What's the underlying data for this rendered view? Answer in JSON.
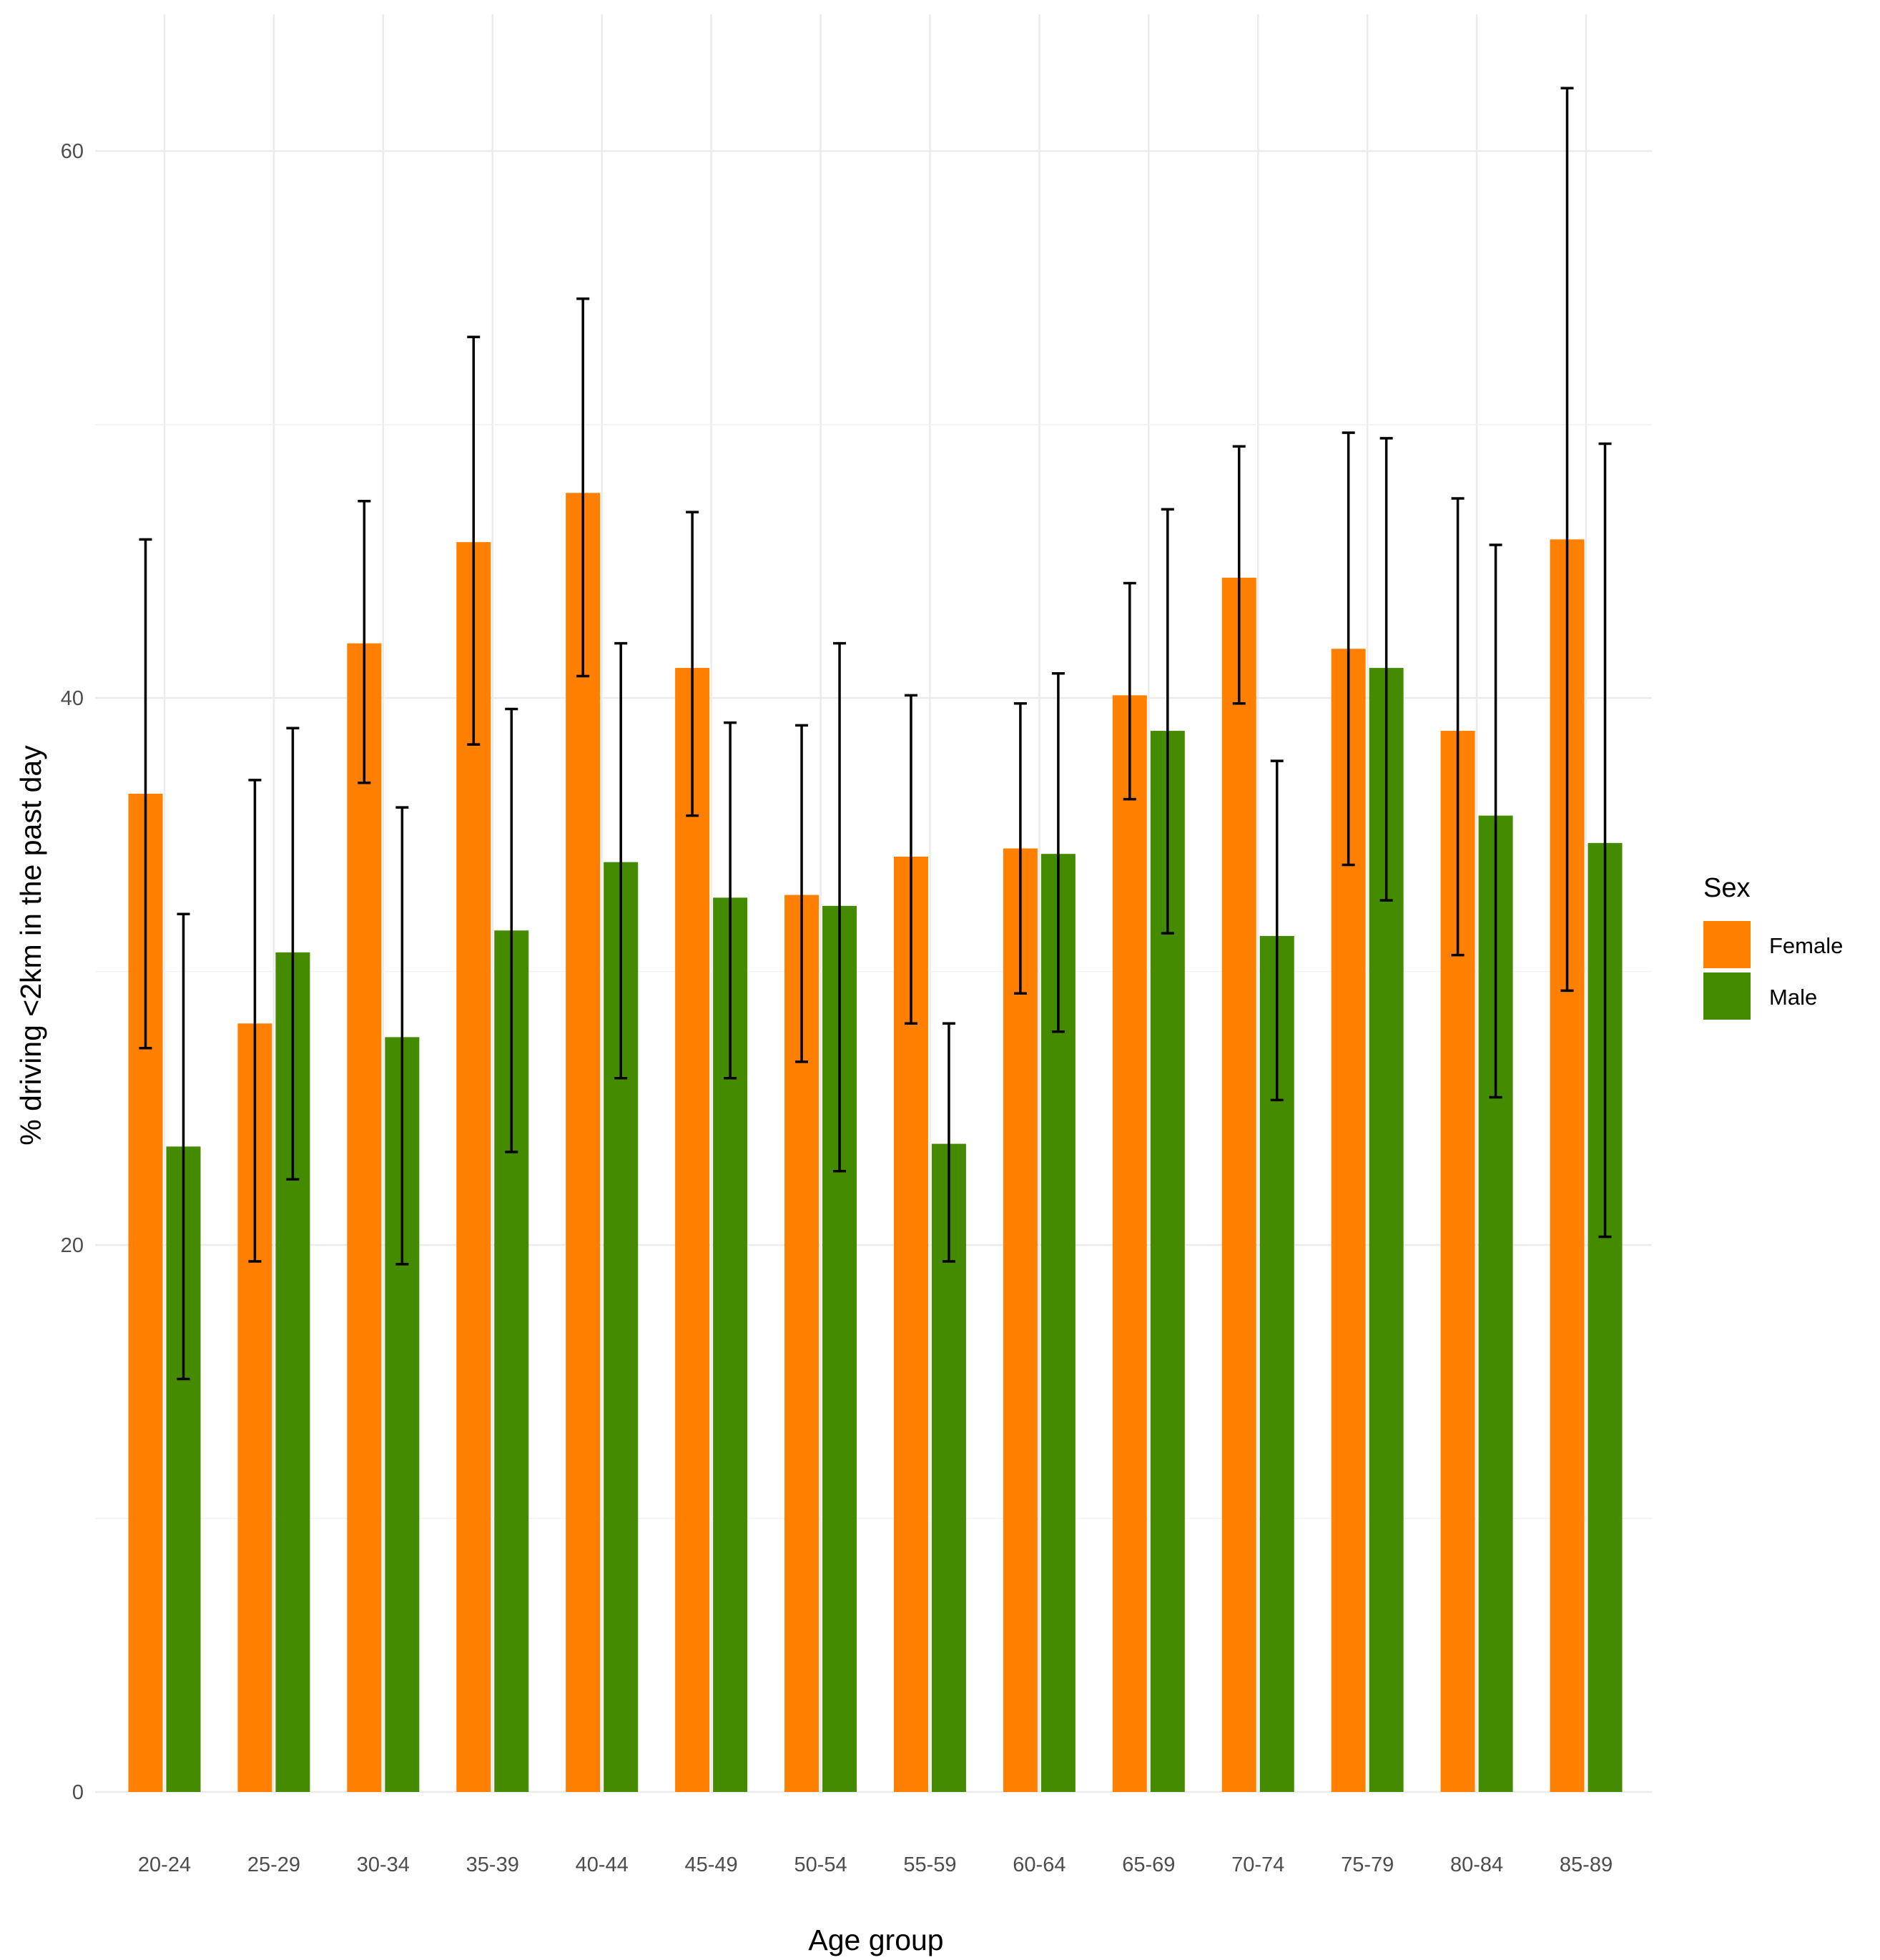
{
  "chart_data": {
    "type": "bar",
    "xlabel": "Age group",
    "ylabel": "% driving <2km in the past day",
    "ylim": [
      0,
      65
    ],
    "yticks": [
      0,
      20,
      40,
      60
    ],
    "grid": true,
    "legend": {
      "title": "Sex",
      "placement": "right"
    },
    "categories": [
      "20-24",
      "25-29",
      "30-34",
      "35-39",
      "40-44",
      "45-49",
      "50-54",
      "55-59",
      "60-64",
      "65-69",
      "70-74",
      "75-79",
      "80-84",
      "85-89"
    ],
    "series": [
      {
        "name": "Female",
        "color": "#FF7F00",
        "values": [
          36.5,
          28.1,
          42.0,
          45.7,
          47.5,
          41.1,
          32.8,
          34.2,
          34.5,
          40.1,
          44.4,
          41.8,
          38.8,
          45.8
        ],
        "error_low": [
          27.2,
          19.4,
          36.9,
          38.3,
          40.8,
          35.7,
          26.7,
          28.1,
          29.2,
          36.3,
          39.8,
          33.9,
          30.6,
          29.3
        ],
        "error_high": [
          45.8,
          37.0,
          47.2,
          53.2,
          54.6,
          46.8,
          39.0,
          40.1,
          39.8,
          44.2,
          49.2,
          49.7,
          47.3,
          62.3
        ]
      },
      {
        "name": "Male",
        "color": "#458B00",
        "values": [
          23.6,
          30.7,
          27.6,
          31.5,
          34.0,
          32.7,
          32.4,
          23.7,
          34.3,
          38.8,
          31.3,
          41.1,
          35.7,
          34.7
        ],
        "error_low": [
          15.1,
          22.4,
          19.3,
          23.4,
          26.1,
          26.1,
          22.7,
          19.4,
          27.8,
          31.4,
          25.3,
          32.6,
          25.4,
          20.3
        ],
        "error_high": [
          32.1,
          38.9,
          36.0,
          39.6,
          42.0,
          39.1,
          42.0,
          28.1,
          40.9,
          46.9,
          37.7,
          49.5,
          45.6,
          49.3
        ]
      }
    ]
  }
}
